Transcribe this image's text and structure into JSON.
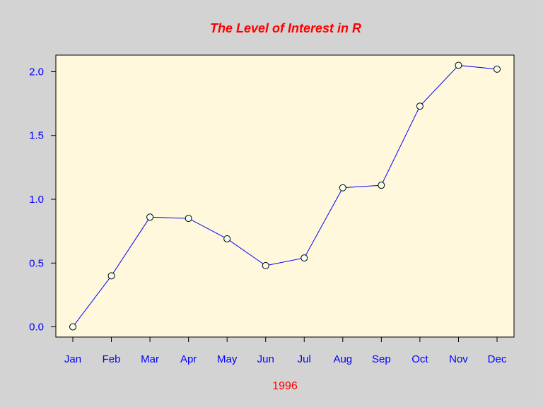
{
  "chart_data": {
    "type": "line",
    "title": "The Level of Interest in R",
    "xlabel": "1996",
    "ylabel": "",
    "categories": [
      "Jan",
      "Feb",
      "Mar",
      "Apr",
      "May",
      "Jun",
      "Jul",
      "Aug",
      "Sep",
      "Oct",
      "Nov",
      "Dec"
    ],
    "series": [
      {
        "values": [
          0.0,
          0.4,
          0.86,
          0.85,
          0.69,
          0.48,
          0.54,
          1.09,
          1.11,
          1.73,
          2.05,
          2.02
        ]
      }
    ],
    "yticks": [
      "0.0",
      "0.5",
      "1.0",
      "1.5",
      "2.0"
    ],
    "ylim": [
      -0.08,
      2.13
    ],
    "grid": false,
    "colors": {
      "background": "#d3d3d3",
      "plot_background": "#fff8dc",
      "line": "#0000ff",
      "marker_fill": "#f0fff0",
      "title": "#ff0000",
      "xlabel": "#ff0000",
      "tick_labels": "#0000ff",
      "axis": "#000000"
    }
  }
}
